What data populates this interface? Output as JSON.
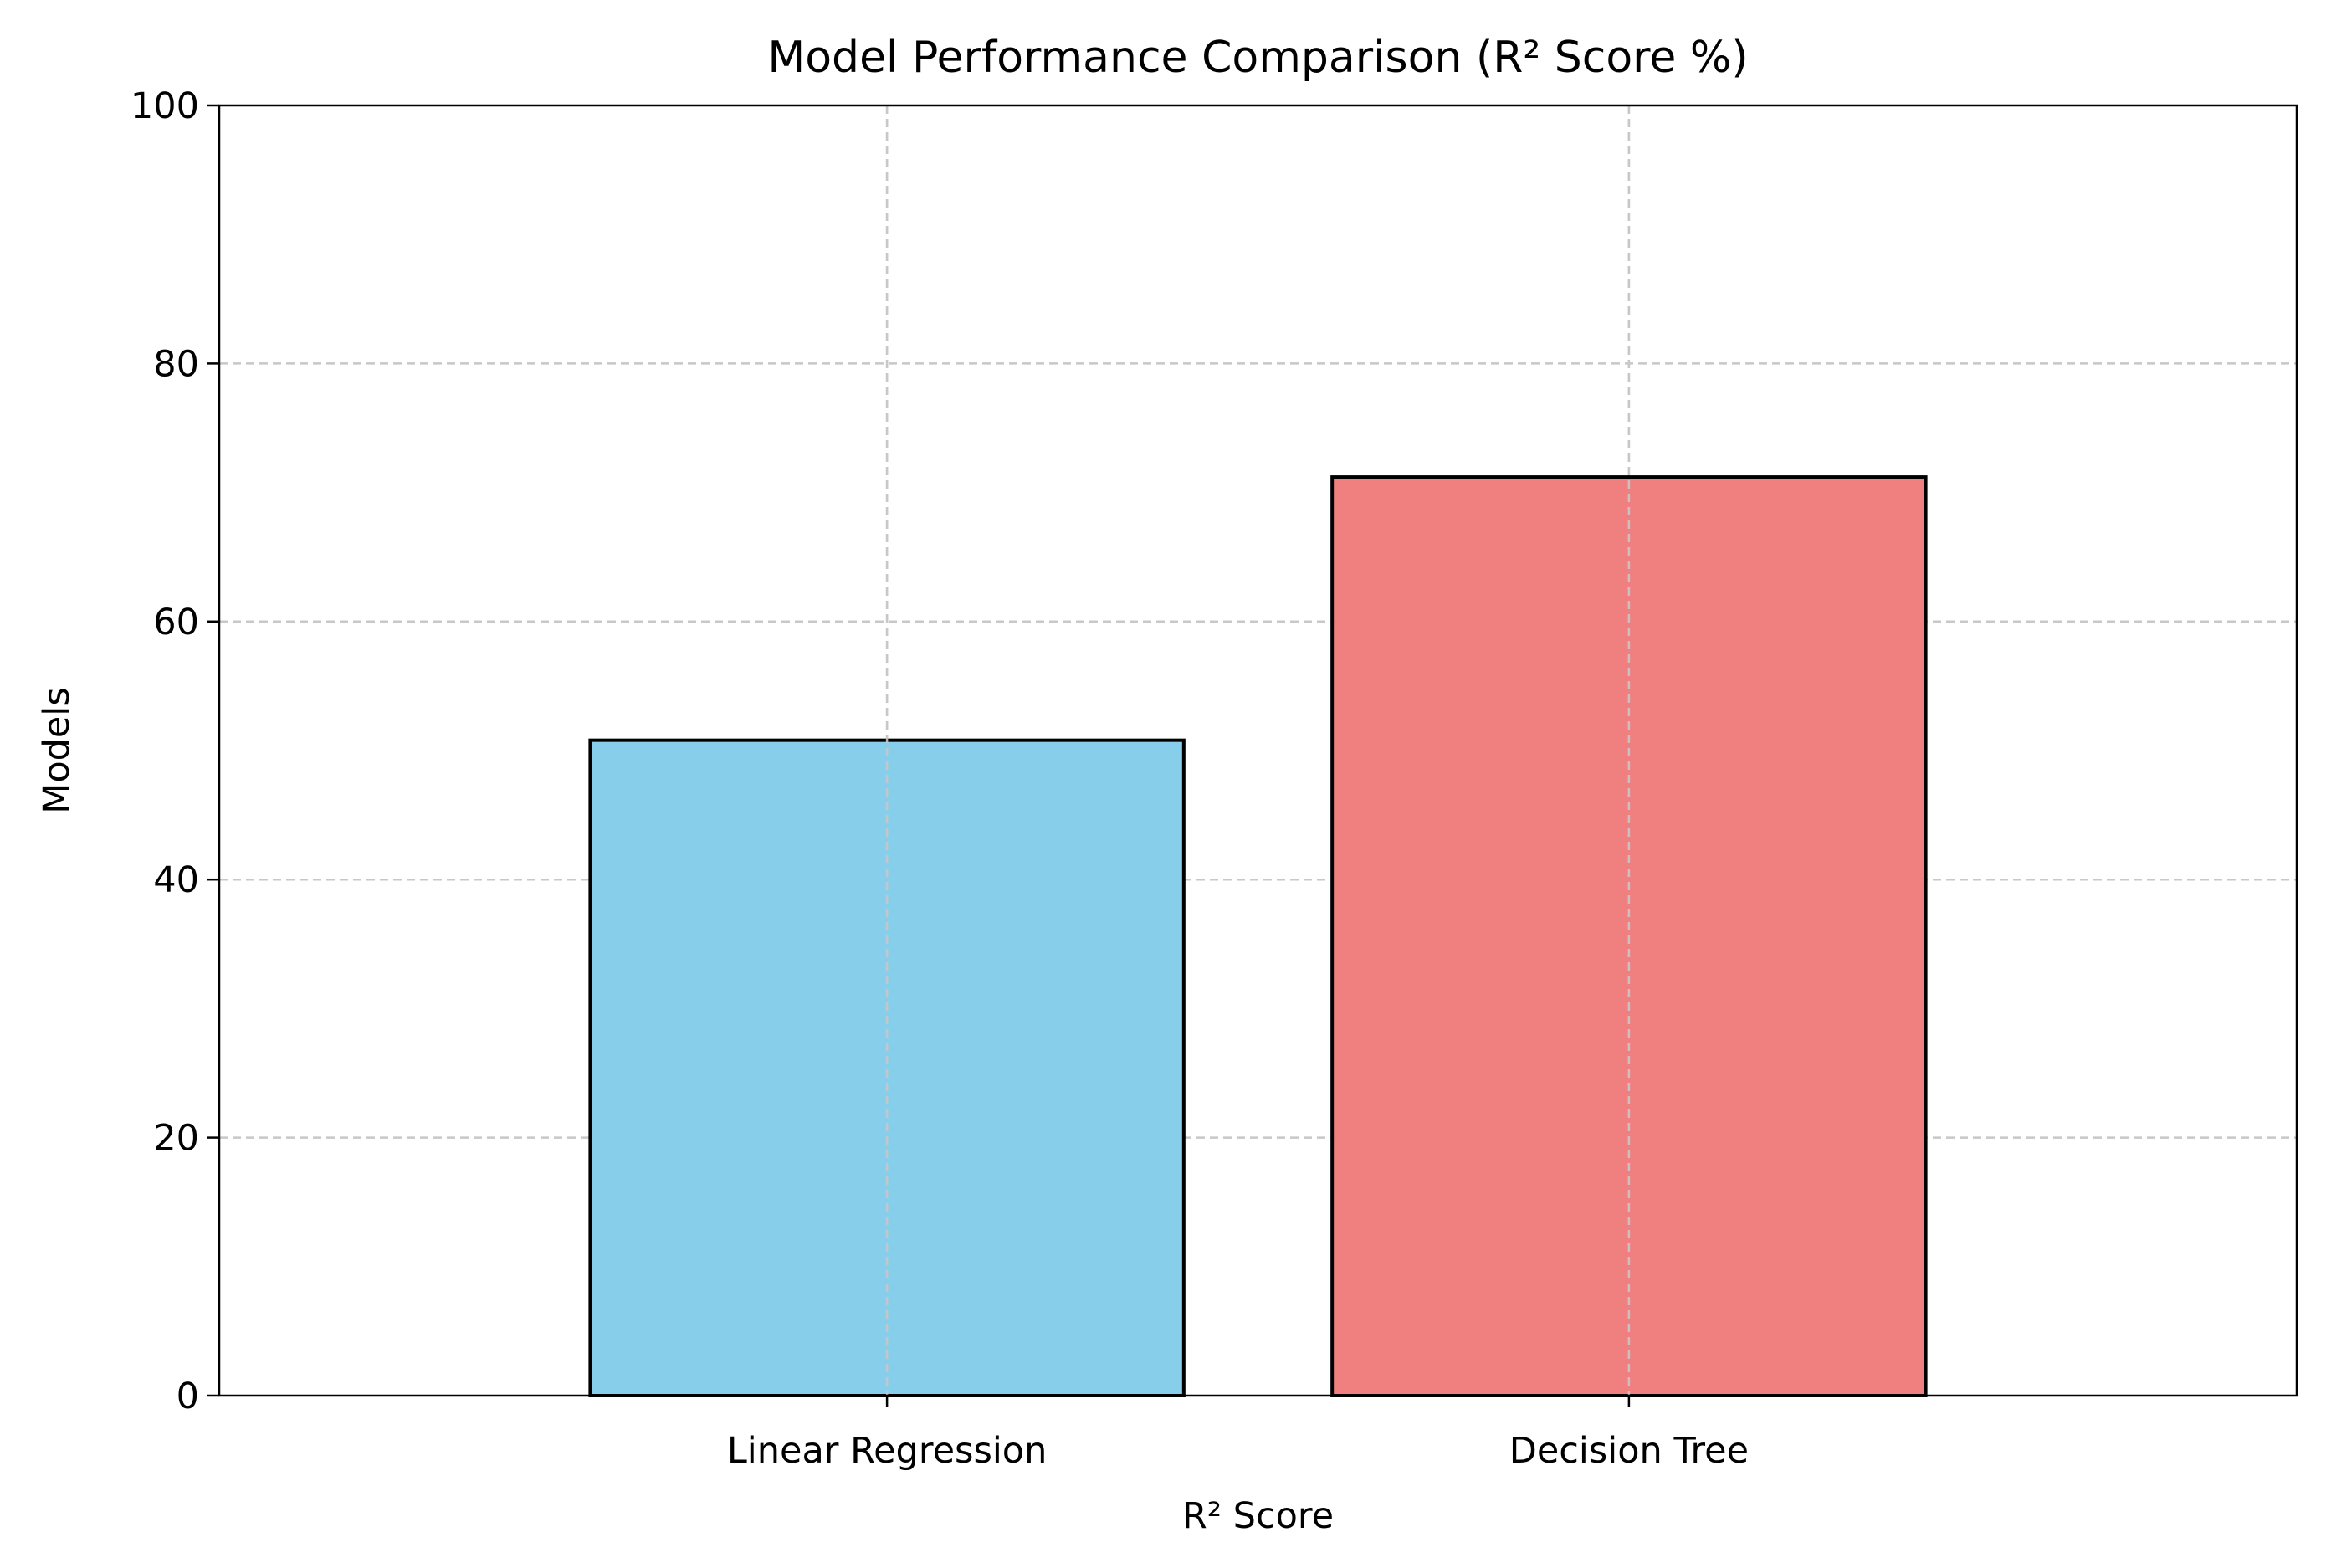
{
  "chart_data": {
    "type": "bar",
    "title": "Model Performance Comparison (R² Score %)",
    "xlabel": "R² Score",
    "ylabel": "Models",
    "categories": [
      "Linear Regression",
      "Decision Tree"
    ],
    "values": [
      50.8,
      71.2
    ],
    "colors": [
      "#87ceeb",
      "#f08080"
    ],
    "edge_color": "#000000",
    "ylim": [
      0,
      100
    ],
    "yticks": [
      0,
      20,
      40,
      60,
      80,
      100
    ],
    "grid": true,
    "legend": false
  }
}
